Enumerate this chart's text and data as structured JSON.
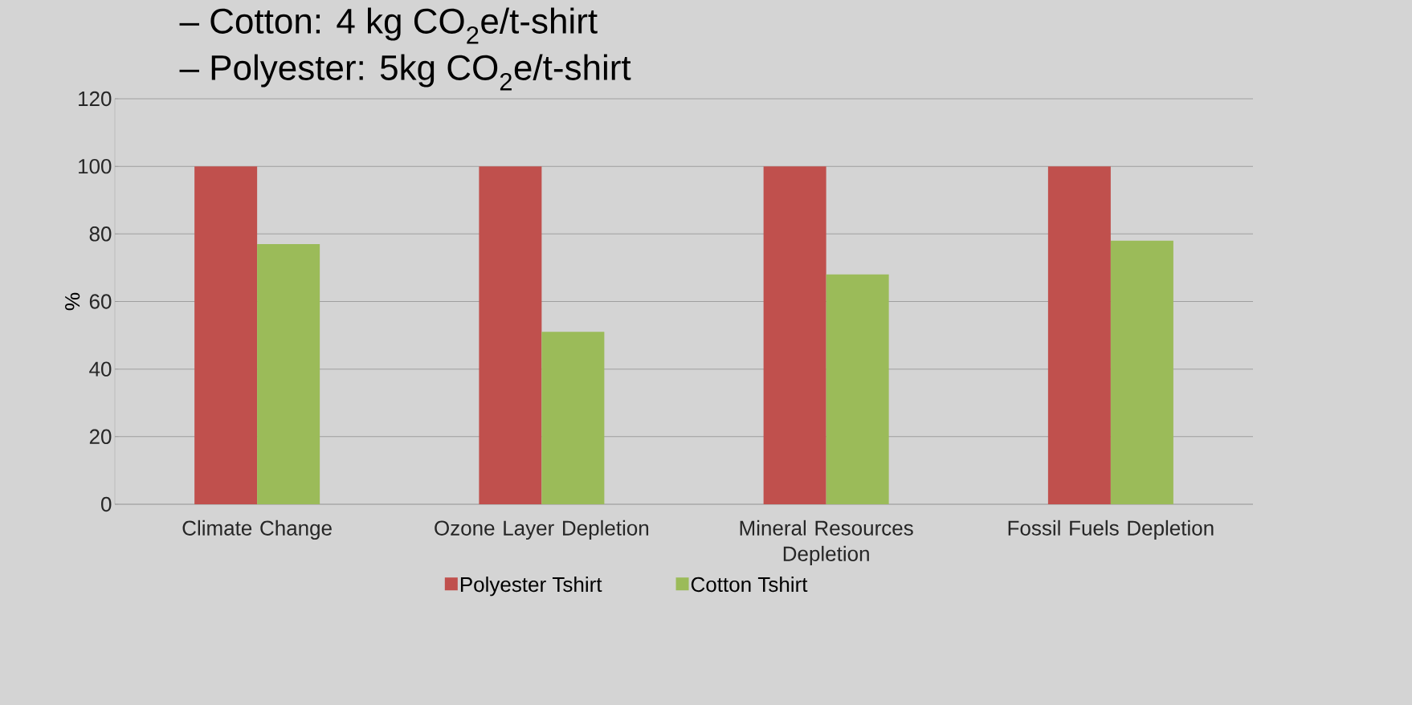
{
  "chart_data": {
    "type": "bar",
    "ylabel": "%",
    "annotations": [
      "– Cotton: 4 kg CO$_{2}$e/t-shirt",
      "– Polyester: 5kg CO$_{2}$e/t-shirt"
    ],
    "categories": [
      "Climate Change",
      "Ozone Layer Depletion",
      "Mineral Resources Depletion",
      "Fossil Fuels Depletion"
    ],
    "series": [
      {
        "name": "Polyester Tshirt",
        "color": "#c0504d",
        "values": [
          100,
          100,
          100,
          100
        ]
      },
      {
        "name": "Cotton Tshirt",
        "color": "#9bbb59",
        "values": [
          77,
          51,
          68,
          78
        ]
      }
    ],
    "ylim": [
      0,
      120
    ],
    "yticks": [
      0,
      20,
      40,
      60,
      80,
      100,
      120
    ],
    "grid": "y",
    "legend": "bottom"
  }
}
